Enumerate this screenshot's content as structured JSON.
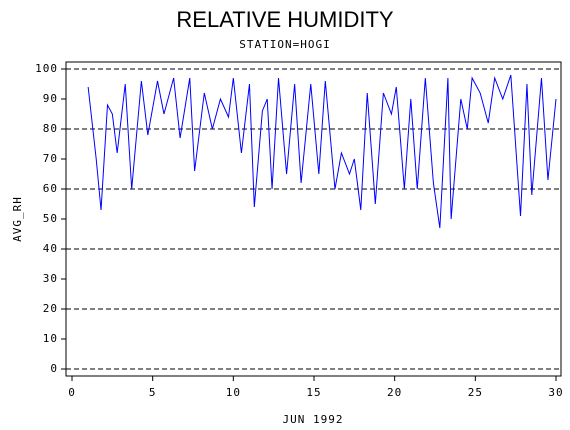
{
  "chart_data": {
    "type": "line",
    "title": "RELATIVE HUMIDITY",
    "subtitle": "STATION=HOGI",
    "x_label": "JUN 1992",
    "y_label": "AVG_RH",
    "x": [
      1,
      1.5,
      1.8,
      2.2,
      2.5,
      2.8,
      3.3,
      3.7,
      4.3,
      4.7,
      5.3,
      5.7,
      6.3,
      6.7,
      7.3,
      7.6,
      8.2,
      8.7,
      9.2,
      9.7,
      10,
      10.5,
      11,
      11.3,
      11.8,
      12.1,
      12.4,
      12.8,
      13.3,
      13.8,
      14.2,
      14.8,
      15.3,
      15.7,
      16.3,
      16.7,
      17.2,
      17.5,
      17.9,
      18.3,
      18.8,
      19.3,
      19.8,
      20.1,
      20.6,
      21,
      21.4,
      21.9,
      22.4,
      22.8,
      23.3,
      23.5,
      24.1,
      24.5,
      24.8,
      25.3,
      25.8,
      26.2,
      26.7,
      27.2,
      27.8,
      28.2,
      28.5,
      29.1,
      29.5,
      30
    ],
    "series": [
      {
        "name": "AVG_RH",
        "color": "#0000ff",
        "values": [
          94,
          70,
          53,
          88,
          85,
          72,
          95,
          60,
          96,
          78,
          96,
          85,
          97,
          77,
          97,
          66,
          92,
          80,
          90,
          84,
          97,
          72,
          95,
          54,
          86,
          90,
          60,
          97,
          65,
          95,
          62,
          95,
          65,
          96,
          60,
          72,
          65,
          70,
          53,
          92,
          55,
          92,
          85,
          94,
          60,
          90,
          60,
          97,
          62,
          47,
          97,
          50,
          90,
          80,
          97,
          92,
          82,
          97,
          90,
          98,
          51,
          95,
          58,
          97,
          63,
          90
        ]
      }
    ],
    "xlim": [
      0,
      30
    ],
    "xticks": [
      0,
      5,
      10,
      15,
      20,
      25,
      30
    ],
    "ylim": [
      0,
      100
    ],
    "yticks": [
      0,
      10,
      20,
      30,
      40,
      50,
      60,
      70,
      80,
      90,
      100
    ],
    "hlines": [
      0,
      20,
      40,
      60,
      80,
      100
    ]
  }
}
